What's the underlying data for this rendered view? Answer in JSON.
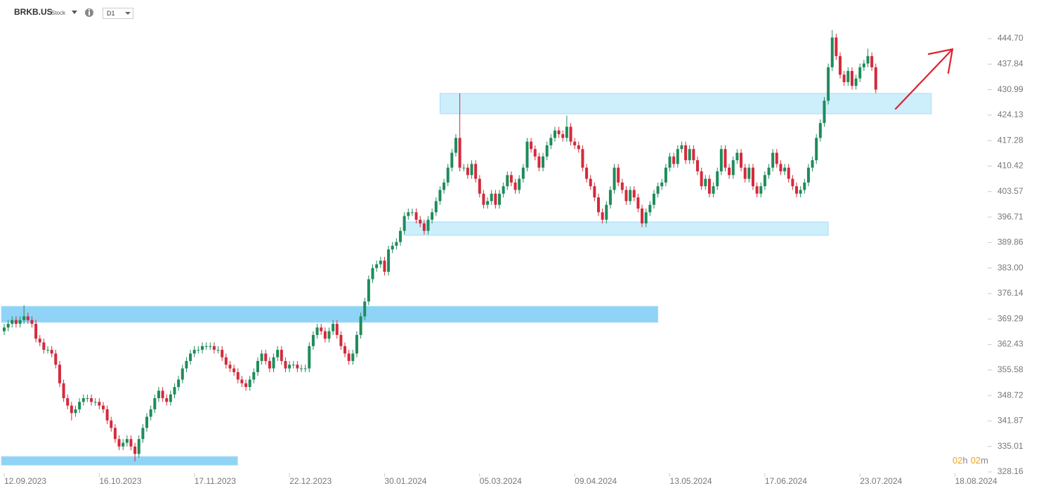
{
  "header": {
    "symbol": "BRKB.US",
    "kind": "Stock",
    "timeframe": "D1"
  },
  "countdown": {
    "hours": "02",
    "hours_unit": "h",
    "minutes": "02",
    "minutes_unit": "m"
  },
  "chart_data": {
    "type": "candlestick",
    "up_color": "#1e8c5a",
    "down_color": "#d42a3c",
    "xlim": [
      -1.06,
      247.16
    ],
    "xticks": [
      {
        "value": 0,
        "label": "12.09.2023"
      },
      {
        "value": 24,
        "label": "16.10.2023"
      },
      {
        "value": 48,
        "label": "17.11.2023"
      },
      {
        "value": 72,
        "label": "22.12.2023"
      },
      {
        "value": 96,
        "label": "30.01.2024"
      },
      {
        "value": 120,
        "label": "05.03.2024"
      },
      {
        "value": 144,
        "label": "09.04.2024"
      },
      {
        "value": 168,
        "label": "13.05.2024"
      },
      {
        "value": 192,
        "label": "17.06.2024"
      },
      {
        "value": 216,
        "label": "23.07.2024"
      },
      {
        "value": 240,
        "label": "18.08.2024"
      }
    ],
    "ylim": [
      326.65,
      455.09
    ],
    "yticks": [
      {
        "value": 444.7,
        "label": "444.70"
      },
      437.84,
      430.99,
      424.13,
      417.28,
      410.42,
      403.57,
      396.71,
      389.86,
      {
        "value": 383.0,
        "label": "383.00"
      },
      376.14,
      369.29,
      362.43,
      355.58,
      348.72,
      341.87,
      335.01,
      328.16
    ],
    "zones": [
      {
        "x": [
          -1.06,
          58.9
        ],
        "y": [
          330.0,
          332.3
        ],
        "color": "#8fd3f7"
      },
      {
        "x": [
          -1.06,
          165.0
        ],
        "y": [
          368.4,
          372.7
        ],
        "color": "#8fd3f7"
      },
      {
        "x": [
          101.0,
          208.0
        ],
        "y": [
          391.8,
          395.4
        ],
        "color": "#cdeefb"
      },
      {
        "x": [
          110.0,
          234.0
        ],
        "y": [
          424.49,
          429.97
        ],
        "color": "#cdeefb"
      }
    ],
    "open": [
      366,
      367,
      368,
      369,
      368,
      369,
      370,
      369,
      368,
      364,
      363,
      361,
      361,
      360,
      357,
      352,
      348,
      346,
      344,
      345,
      347,
      348,
      348,
      347,
      347,
      346,
      345,
      342,
      340,
      337,
      335,
      336,
      337,
      335,
      333,
      337,
      340,
      343,
      345,
      348,
      350,
      348,
      347,
      349,
      351,
      353,
      356,
      358,
      360,
      361,
      361,
      362,
      362,
      362,
      361,
      361,
      359,
      357,
      356,
      355,
      353,
      352,
      351,
      353,
      355,
      358,
      360,
      358,
      356,
      359,
      361,
      358,
      356,
      357,
      357,
      356,
      356,
      356,
      362,
      365,
      367,
      366,
      364,
      366,
      368,
      365,
      362,
      360,
      358,
      360,
      365,
      370,
      374,
      380,
      383,
      384,
      385,
      382,
      388,
      389,
      390,
      393,
      397,
      398,
      398,
      396,
      395,
      393,
      396,
      398,
      401,
      404,
      406,
      410,
      414,
      418,
      410,
      410,
      408,
      411,
      407,
      403,
      400,
      401,
      403,
      400,
      403,
      405,
      408,
      406,
      404,
      407,
      410,
      417,
      415,
      413,
      410,
      413,
      416,
      418,
      420,
      419,
      418,
      421,
      417,
      416,
      415,
      410,
      407,
      405,
      402,
      398,
      396,
      400,
      404,
      410,
      406,
      404,
      401,
      404,
      402,
      399,
      395,
      398,
      400,
      403,
      405,
      406,
      410,
      413,
      411,
      415,
      416,
      412,
      415,
      412,
      409,
      405,
      407,
      403,
      405,
      409,
      415,
      410,
      408,
      412,
      414,
      410,
      407,
      410,
      405,
      403,
      405,
      408,
      410,
      414,
      411,
      409,
      410,
      407,
      405,
      403,
      404,
      406,
      410,
      412,
      418,
      422,
      428,
      437,
      445,
      440,
      435,
      433,
      436,
      432,
      434,
      437,
      438,
      440,
      437
    ],
    "high": [
      368,
      369,
      370,
      370,
      370,
      373,
      371,
      370,
      369,
      365,
      364,
      362,
      362,
      361,
      358,
      353,
      349,
      347,
      346,
      348,
      349,
      349,
      349,
      348,
      348,
      347,
      346,
      343,
      341,
      338,
      337,
      338,
      338,
      336,
      338,
      341,
      344,
      346,
      349,
      351,
      351,
      349,
      350,
      352,
      354,
      357,
      359,
      361,
      362,
      362,
      363,
      363,
      363,
      363,
      362,
      362,
      360,
      358,
      357,
      356,
      354,
      353,
      354,
      356,
      359,
      361,
      361,
      359,
      360,
      362,
      362,
      359,
      358,
      358,
      358,
      357,
      357,
      363,
      366,
      368,
      368,
      367,
      367,
      369,
      369,
      366,
      363,
      361,
      361,
      366,
      371,
      375,
      381,
      384,
      385,
      386,
      386,
      389,
      390,
      391,
      394,
      398,
      399,
      399,
      399,
      397,
      396,
      397,
      399,
      402,
      405,
      407,
      411,
      415,
      419,
      430,
      411,
      411,
      412,
      412,
      408,
      404,
      402,
      404,
      404,
      404,
      406,
      409,
      409,
      407,
      408,
      411,
      418,
      418,
      416,
      414,
      414,
      417,
      419,
      421,
      421,
      420,
      424,
      422,
      418,
      417,
      416,
      411,
      408,
      406,
      403,
      399,
      401,
      405,
      411,
      411,
      407,
      405,
      405,
      405,
      403,
      400,
      399,
      401,
      404,
      406,
      407,
      411,
      414,
      414,
      416,
      417,
      417,
      416,
      416,
      413,
      410,
      408,
      408,
      406,
      410,
      416,
      416,
      411,
      413,
      415,
      415,
      411,
      411,
      411,
      406,
      406,
      409,
      411,
      415,
      415,
      412,
      411,
      411,
      408,
      406,
      405,
      407,
      411,
      413,
      419,
      423,
      429,
      438,
      447,
      446,
      441,
      436,
      437,
      437,
      435,
      438,
      439,
      442,
      441,
      438
    ],
    "low": [
      365,
      366,
      367,
      367,
      367,
      368,
      368,
      367,
      363,
      362,
      360,
      360,
      359,
      356,
      351,
      347,
      345,
      342,
      343,
      344,
      346,
      347,
      346,
      346,
      345,
      344,
      341,
      339,
      336,
      334,
      334,
      335,
      334,
      331,
      332,
      336,
      339,
      342,
      344,
      347,
      347,
      346,
      346,
      348,
      350,
      352,
      355,
      357,
      359,
      360,
      360,
      361,
      361,
      360,
      360,
      358,
      356,
      355,
      354,
      352,
      351,
      350,
      350,
      352,
      354,
      357,
      357,
      355,
      355,
      358,
      357,
      355,
      355,
      356,
      355,
      355,
      355,
      355,
      361,
      364,
      365,
      363,
      363,
      365,
      364,
      361,
      359,
      357,
      357,
      359,
      364,
      369,
      373,
      379,
      382,
      383,
      381,
      381,
      387,
      388,
      389,
      392,
      396,
      397,
      395,
      394,
      392,
      392,
      395,
      397,
      400,
      403,
      405,
      409,
      413,
      409,
      409,
      407,
      407,
      406,
      402,
      399,
      399,
      400,
      399,
      399,
      402,
      404,
      405,
      403,
      403,
      406,
      409,
      414,
      412,
      409,
      409,
      412,
      415,
      417,
      418,
      417,
      417,
      416,
      415,
      414,
      409,
      406,
      404,
      401,
      397,
      395,
      395,
      399,
      403,
      405,
      403,
      400,
      400,
      401,
      398,
      394,
      394,
      397,
      399,
      402,
      404,
      405,
      409,
      410,
      410,
      414,
      411,
      411,
      411,
      408,
      404,
      404,
      402,
      402,
      404,
      408,
      409,
      407,
      407,
      411,
      409,
      406,
      406,
      404,
      402,
      402,
      404,
      407,
      409,
      410,
      408,
      408,
      406,
      404,
      402,
      402,
      403,
      405,
      409,
      411,
      417,
      421,
      427,
      436,
      439,
      434,
      432,
      432,
      431,
      431,
      433,
      436,
      437,
      436,
      430
    ],
    "close": [
      367,
      368,
      369,
      368,
      369,
      370,
      369,
      368,
      364,
      363,
      361,
      361,
      360,
      357,
      352,
      348,
      346,
      344,
      345,
      347,
      348,
      348,
      347,
      347,
      346,
      345,
      342,
      340,
      337,
      335,
      336,
      337,
      335,
      333,
      337,
      340,
      343,
      345,
      348,
      350,
      348,
      347,
      349,
      351,
      353,
      356,
      358,
      360,
      361,
      361,
      362,
      362,
      362,
      361,
      361,
      359,
      357,
      356,
      355,
      353,
      352,
      351,
      353,
      355,
      358,
      360,
      358,
      356,
      359,
      361,
      358,
      356,
      357,
      357,
      356,
      356,
      356,
      362,
      365,
      367,
      366,
      364,
      366,
      368,
      365,
      362,
      360,
      358,
      360,
      365,
      370,
      374,
      380,
      383,
      384,
      385,
      382,
      388,
      389,
      390,
      393,
      397,
      398,
      398,
      396,
      395,
      393,
      396,
      398,
      401,
      404,
      406,
      410,
      414,
      418,
      410,
      410,
      408,
      411,
      407,
      403,
      400,
      401,
      403,
      400,
      403,
      405,
      408,
      406,
      404,
      407,
      410,
      417,
      415,
      413,
      410,
      413,
      416,
      418,
      420,
      419,
      418,
      421,
      417,
      416,
      415,
      410,
      407,
      405,
      402,
      398,
      396,
      400,
      404,
      410,
      406,
      404,
      401,
      404,
      402,
      399,
      395,
      398,
      400,
      403,
      405,
      406,
      410,
      413,
      411,
      415,
      416,
      412,
      415,
      412,
      409,
      405,
      407,
      403,
      405,
      409,
      415,
      410,
      408,
      412,
      414,
      410,
      407,
      410,
      405,
      403,
      405,
      408,
      410,
      414,
      411,
      409,
      410,
      407,
      405,
      403,
      404,
      406,
      410,
      412,
      418,
      422,
      428,
      437,
      445,
      440,
      435,
      433,
      436,
      432,
      434,
      437,
      438,
      440,
      437,
      431
    ]
  }
}
